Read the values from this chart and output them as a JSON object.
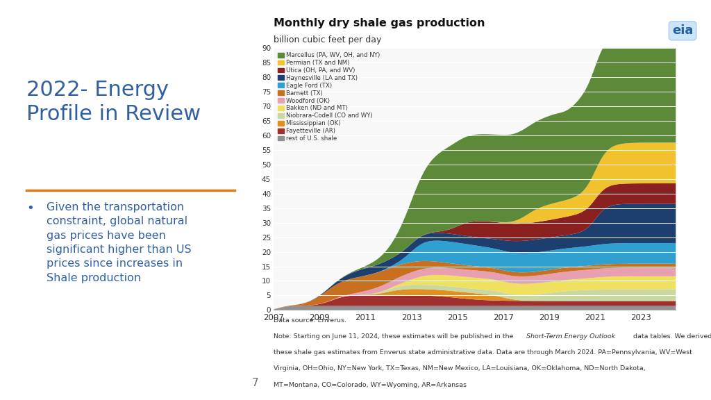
{
  "title": "Monthly dry shale gas production",
  "subtitle": "billion cubic feet per day",
  "left_title": "2022- Energy\nProfile in Review",
  "left_text": "Given the transportation\nconstraint, global natural\ngas prices have been\nsignificant higher than US\nprices since increases in\nShale production",
  "page_number": "7",
  "series": [
    {
      "label": "Marcellus (PA, WV, OH, and NY)",
      "color": "#5c8a38"
    },
    {
      "label": "Permian (TX and NM)",
      "color": "#f2c12e"
    },
    {
      "label": "Utica (OH, PA, and WV)",
      "color": "#8b2020"
    },
    {
      "label": "Haynesville (LA and TX)",
      "color": "#1c3f70"
    },
    {
      "label": "Eagle Ford (TX)",
      "color": "#2fa0d0"
    },
    {
      "label": "Barnett (TX)",
      "color": "#c87020"
    },
    {
      "label": "Woodford (OK)",
      "color": "#e8a0b0"
    },
    {
      "label": "Bakken (ND and MT)",
      "color": "#f0e060"
    },
    {
      "label": "Niobrara-Codell (CO and WY)",
      "color": "#c8d8a0"
    },
    {
      "label": "Mississippian (OK)",
      "color": "#e09020"
    },
    {
      "label": "Fayetteville (AR)",
      "color": "#a03030"
    },
    {
      "label": "rest of U.S. shale",
      "color": "#909090"
    }
  ],
  "yticks": [
    0,
    5,
    10,
    15,
    20,
    25,
    30,
    35,
    40,
    45,
    50,
    55,
    60,
    65,
    70,
    75,
    80,
    85,
    90
  ],
  "xticks": [
    2007,
    2009,
    2011,
    2013,
    2015,
    2017,
    2019,
    2021,
    2023
  ],
  "background_color": "#ffffff"
}
